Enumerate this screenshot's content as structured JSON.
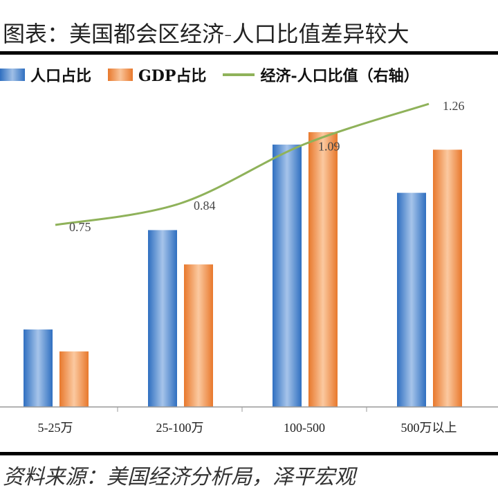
{
  "title": "图表：美国都会区经济-人口比值差异较大",
  "source": "资料来源：美国经济分析局，泽平宏观",
  "chart_data": {
    "type": "bar",
    "categories": [
      "5-25万",
      "25-100万",
      "100-500",
      "500万以上"
    ],
    "series": [
      {
        "name": "人口占比",
        "type": "bar",
        "axis": "left",
        "color": "#3a78c8",
        "values": [
          10.6,
          24.2,
          35.9,
          29.3
        ]
      },
      {
        "name": "GDP占比",
        "type": "bar",
        "axis": "left",
        "color": "#ee8a3e",
        "values": [
          7.6,
          19.5,
          37.6,
          35.2
        ]
      },
      {
        "name": "经济-人口比值（右轴）",
        "type": "line",
        "axis": "right",
        "color": "#8fb25a",
        "values": [
          0.75,
          0.84,
          1.09,
          1.26
        ],
        "labels": [
          "0.75",
          "0.84",
          "1.09",
          "1.26"
        ]
      }
    ],
    "ylim": [
      0,
      56
    ],
    "y2lim": [
      0.75,
      1.26
    ],
    "grid": false,
    "legend": "top"
  }
}
